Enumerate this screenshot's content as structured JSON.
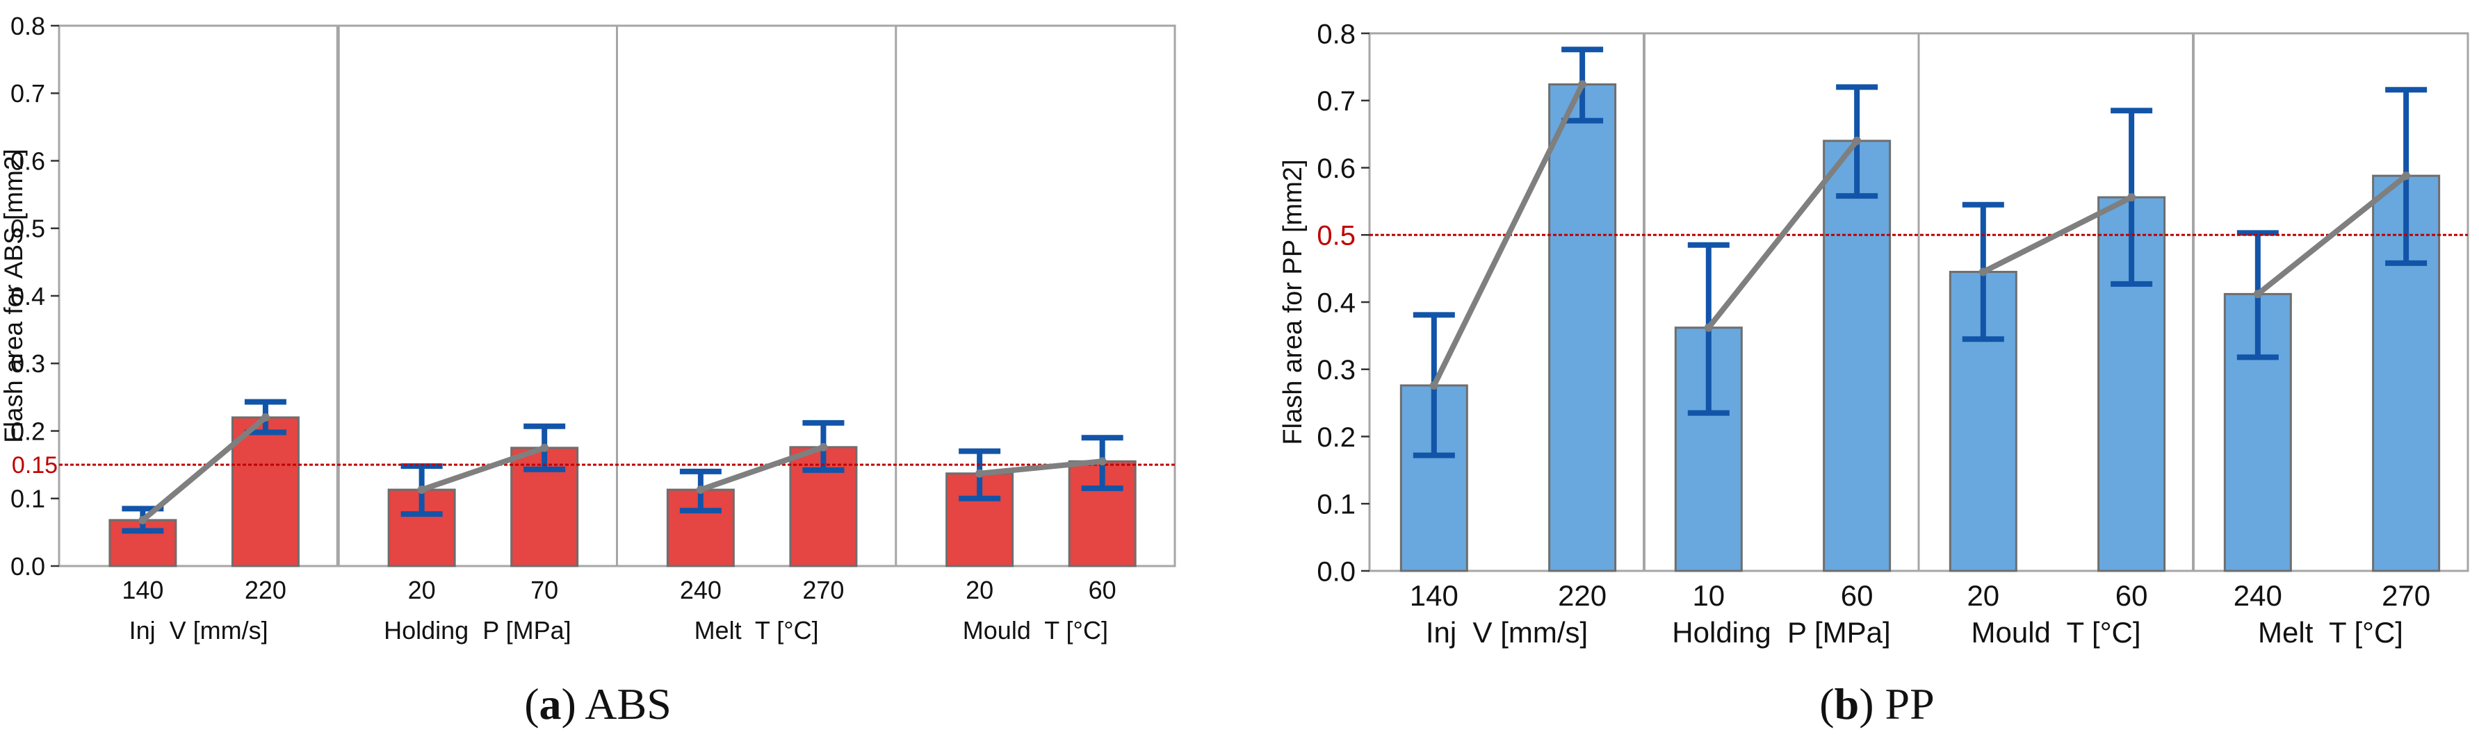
{
  "colors": {
    "abs_bar": "#E54543",
    "pp_bar": "#68A8DE",
    "bar_edge": "#6E6E6E",
    "error_bar": "#1254A8",
    "mean_line": "#7F7F7F",
    "threshold": "#C00000",
    "frame": "#A6A6A6"
  },
  "chart_data": [
    {
      "type": "bar",
      "panel": "a",
      "caption": {
        "label": "a",
        "text": "ABS"
      },
      "ylabel": "Flash area for ABS [mm2]",
      "ylim": [
        0,
        0.8
      ],
      "yticks": [
        "0.0",
        "0.1",
        "0.2",
        "0.3",
        "0.4",
        "0.5",
        "0.6",
        "0.7",
        "0.8"
      ],
      "threshold": {
        "value": 0.15,
        "label": "0.15"
      },
      "groups": [
        {
          "name": "Inj  V [mm/s]",
          "categories": [
            "140",
            "220"
          ],
          "values": [
            0.068,
            0.22
          ],
          "err_low": [
            0.052,
            0.198
          ],
          "err_high": [
            0.085,
            0.243
          ]
        },
        {
          "name": "Holding  P [MPa]",
          "categories": [
            "20",
            "70"
          ],
          "values": [
            0.113,
            0.175
          ],
          "err_low": [
            0.077,
            0.143
          ],
          "err_high": [
            0.148,
            0.207
          ]
        },
        {
          "name": "Melt  T [°C]",
          "categories": [
            "240",
            "270"
          ],
          "values": [
            0.113,
            0.176
          ],
          "err_low": [
            0.082,
            0.142
          ],
          "err_high": [
            0.14,
            0.212
          ]
        },
        {
          "name": "Mould  T [°C]",
          "categories": [
            "20",
            "60"
          ],
          "values": [
            0.137,
            0.155
          ],
          "err_low": [
            0.1,
            0.115
          ],
          "err_high": [
            0.17,
            0.19
          ]
        }
      ]
    },
    {
      "type": "bar",
      "panel": "b",
      "caption": {
        "label": "b",
        "text": "PP"
      },
      "ylabel": "Flash area for PP [mm2]",
      "ylim": [
        0,
        0.8
      ],
      "yticks": [
        "0.0",
        "0.1",
        "0.2",
        "0.3",
        "0.4",
        "0.5",
        "0.6",
        "0.7",
        "0.8"
      ],
      "threshold": {
        "value": 0.5,
        "label": "0.5"
      },
      "groups": [
        {
          "name": "Inj  V [mm/s]",
          "categories": [
            "140",
            "220"
          ],
          "values": [
            0.276,
            0.724
          ],
          "err_low": [
            0.172,
            0.67
          ],
          "err_high": [
            0.381,
            0.776
          ]
        },
        {
          "name": "Holding  P [MPa]",
          "categories": [
            "10",
            "60"
          ],
          "values": [
            0.362,
            0.64
          ],
          "err_low": [
            0.235,
            0.558
          ],
          "err_high": [
            0.485,
            0.72
          ]
        },
        {
          "name": "Mould  T [°C]",
          "categories": [
            "20",
            "60"
          ],
          "values": [
            0.445,
            0.556
          ],
          "err_low": [
            0.345,
            0.427
          ],
          "err_high": [
            0.545,
            0.685
          ]
        },
        {
          "name": "Melt  T [°C]",
          "categories": [
            "240",
            "270"
          ],
          "values": [
            0.412,
            0.588
          ],
          "err_low": [
            0.318,
            0.458
          ],
          "err_high": [
            0.503,
            0.716
          ]
        }
      ]
    }
  ]
}
